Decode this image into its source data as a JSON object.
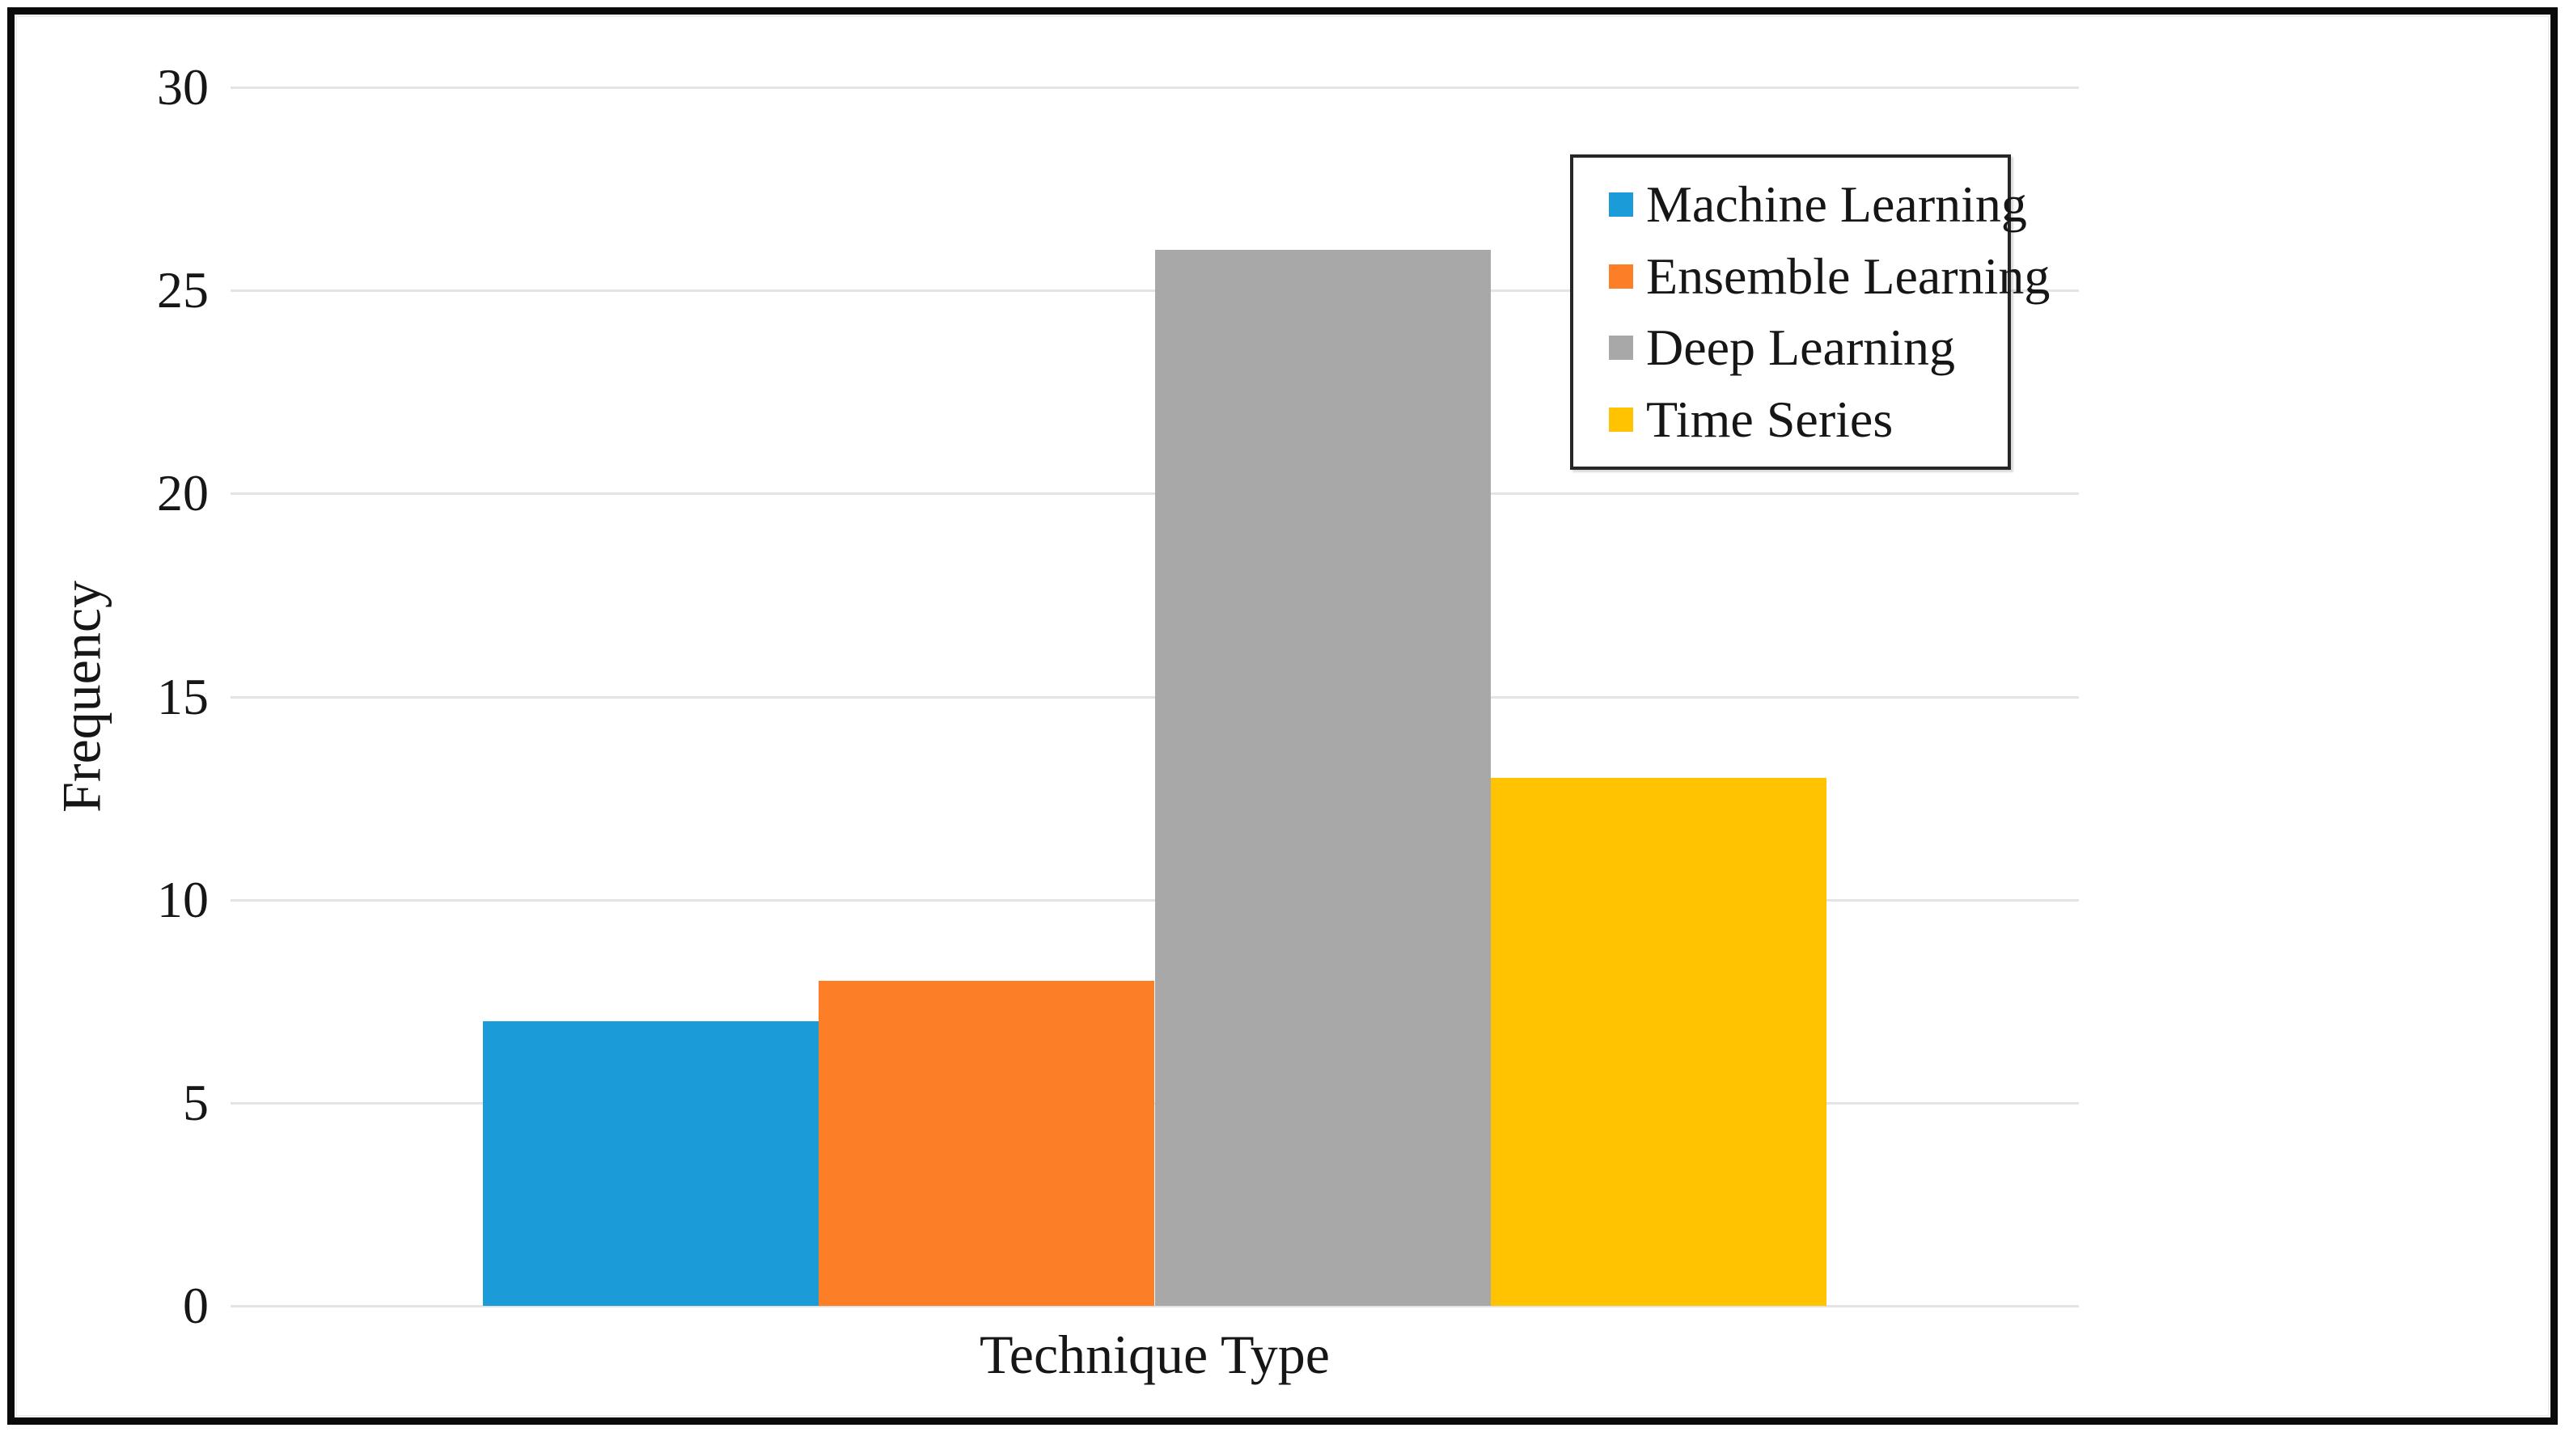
{
  "chart_data": {
    "type": "bar",
    "categories": [
      "Machine Learning",
      "Ensemble Learning",
      "Deep Learning",
      "Time Series"
    ],
    "values": [
      7,
      8,
      26,
      13
    ],
    "bar_colors": [
      "#1b9cd9",
      "#fc7e26",
      "#a8a8a8",
      "#ffc302"
    ],
    "title": "",
    "xlabel": "Technique Type",
    "ylabel": "Frequency",
    "ylim": [
      0,
      30
    ],
    "yticks": [
      0,
      5,
      10,
      15,
      20,
      25,
      30
    ],
    "grid": "horizontal-only",
    "legend_position": "top-right-inside",
    "legend_entries": [
      {
        "label": "Machine Learning",
        "color": "#1b9cd9"
      },
      {
        "label": "Ensemble Learning",
        "color": "#fc7e26"
      },
      {
        "label": "Deep Learning",
        "color": "#a8a8a8"
      },
      {
        "label": "Time Series",
        "color": "#ffc302"
      }
    ]
  },
  "colors": {
    "gridline": "#e4e4e4",
    "text": "#161616",
    "legend_border": "#262626",
    "figure_border": "#0a0a0a",
    "background": "#ffffff"
  }
}
